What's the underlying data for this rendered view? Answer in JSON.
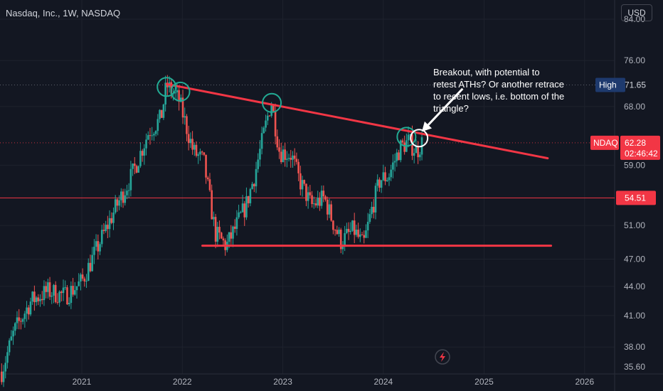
{
  "header": {
    "title": "Nasdaq, Inc., 1W, NASDAQ",
    "currency": "USD"
  },
  "colors": {
    "background": "#131722",
    "up": "#26a69a",
    "down": "#ef5350",
    "trendline": "#f23645",
    "circle": "#22ab94",
    "price_tag": "#f23645",
    "high_tag": "#1e3a6e"
  },
  "chart_data": {
    "type": "candlestick",
    "y_scale": "log",
    "ylim": [
      35.6,
      88
    ],
    "xlim": [
      "2020-03-10",
      "2026-04-20"
    ],
    "y_ticks": [
      "84.00",
      "76.00",
      "68.00",
      "59.00",
      "51.00",
      "47.00",
      "44.00",
      "41.00",
      "38.00",
      "35.60"
    ],
    "x_ticks": [
      "2021",
      "2022",
      "2023",
      "2024",
      "2025",
      "2026"
    ],
    "x_tick_dates": [
      "2021-01-01",
      "2022-01-01",
      "2023-01-01",
      "2024-01-01",
      "2025-01-01",
      "2026-01-01"
    ],
    "price_path": [
      [
        "2020-03-16",
        35.8
      ],
      [
        "2020-05-01",
        39.5
      ],
      [
        "2020-07-01",
        42.5
      ],
      [
        "2020-09-01",
        43.5
      ],
      [
        "2020-11-01",
        43.0
      ],
      [
        "2021-01-01",
        44.5
      ],
      [
        "2021-03-01",
        48.5
      ],
      [
        "2021-05-01",
        53.0
      ],
      [
        "2021-07-01",
        57.5
      ],
      [
        "2021-09-01",
        64.0
      ],
      [
        "2021-10-15",
        66.0
      ],
      [
        "2021-11-05",
        71.65
      ],
      [
        "2021-12-20",
        69.0
      ],
      [
        "2022-02-10",
        61.0
      ],
      [
        "2022-03-20",
        59.5
      ],
      [
        "2022-05-01",
        50.0
      ],
      [
        "2022-06-10",
        48.5
      ],
      [
        "2022-07-10",
        50.5
      ],
      [
        "2022-08-20",
        53.5
      ],
      [
        "2022-09-20",
        57.5
      ],
      [
        "2022-11-20",
        69.0
      ],
      [
        "2022-12-20",
        61.0
      ],
      [
        "2023-02-01",
        60.5
      ],
      [
        "2023-03-01",
        57.0
      ],
      [
        "2023-04-15",
        53.5
      ],
      [
        "2023-06-01",
        54.5
      ],
      [
        "2023-07-01",
        51.5
      ],
      [
        "2023-08-01",
        49.0
      ],
      [
        "2023-09-15",
        50.5
      ],
      [
        "2023-10-20",
        48.5
      ],
      [
        "2023-11-20",
        53.0
      ],
      [
        "2023-12-20",
        57.0
      ],
      [
        "2024-01-20",
        57.5
      ],
      [
        "2024-03-01",
        61.5
      ],
      [
        "2024-04-01",
        62.5
      ],
      [
        "2024-05-01",
        61.0
      ],
      [
        "2024-05-20",
        62.28
      ]
    ],
    "last_price": {
      "label": "NDAQ",
      "value": "62.28",
      "countdown": "02:46:42"
    },
    "high": {
      "label": "High",
      "value": "71.65"
    },
    "level_line": {
      "value": "54.51"
    },
    "trendlines": [
      {
        "start": [
          "2021-11-05",
          71.8
        ],
        "end": [
          "2025-08-20",
          60.0
        ]
      },
      {
        "start": [
          "2022-03-15",
          48.55
        ],
        "end": [
          "2025-09-01",
          48.55
        ]
      }
    ],
    "circles": [
      {
        "date": "2021-11-05",
        "value": 71.3
      },
      {
        "date": "2021-12-25",
        "value": 70.5
      },
      {
        "date": "2022-11-22",
        "value": 68.6
      },
      {
        "date": "2024-03-25",
        "value": 63.2
      }
    ],
    "target_circle": {
      "date": "2024-05-10",
      "value": 63.0
    },
    "arrow": {
      "from": [
        "2024-10-15",
        71.0
      ],
      "to": [
        "2024-05-20",
        64.0
      ]
    },
    "annotation": [
      "Breakout, with potential to",
      "retest ATHs? Or another retrace",
      "to recent lows, i.e. bottom of the",
      "triangle?"
    ],
    "grid": true
  }
}
